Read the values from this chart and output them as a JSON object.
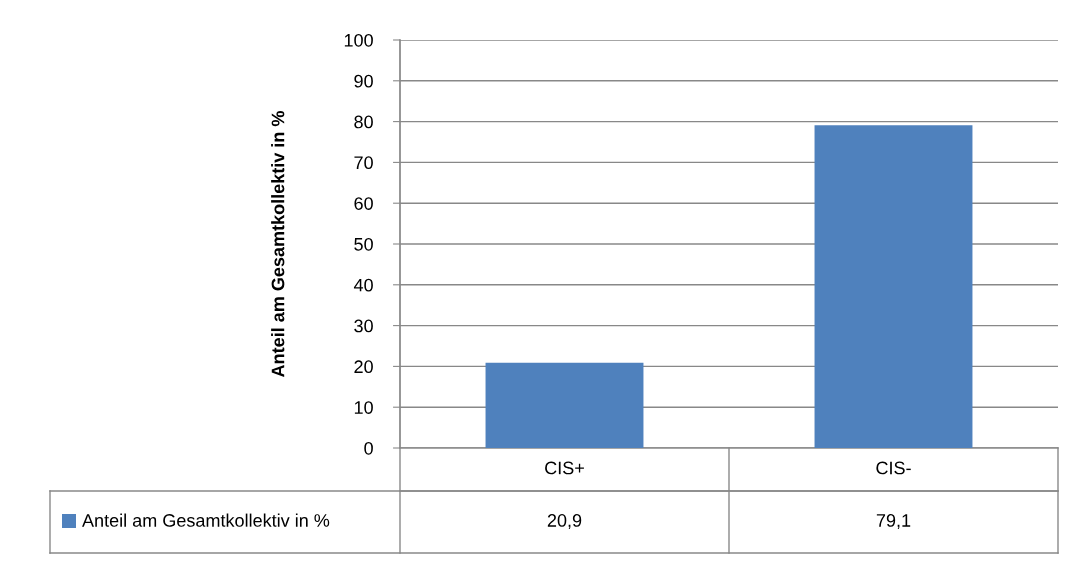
{
  "chart_data": {
    "type": "bar",
    "ylabel": "Anteil am Gesamtkollektiv in %",
    "categories": [
      "CIS+",
      "CIS-"
    ],
    "series": [
      {
        "name": "Anteil am Gesamtkollektiv in %",
        "color": "#4f81bd",
        "values": [
          20.9,
          79.1
        ],
        "value_labels": [
          "20,9",
          "79,1"
        ]
      }
    ],
    "ylim": [
      0,
      100
    ],
    "yticks": [
      0,
      10,
      20,
      30,
      40,
      50,
      60,
      70,
      80,
      90,
      100
    ],
    "grid": "y",
    "legend": "bottom left"
  }
}
